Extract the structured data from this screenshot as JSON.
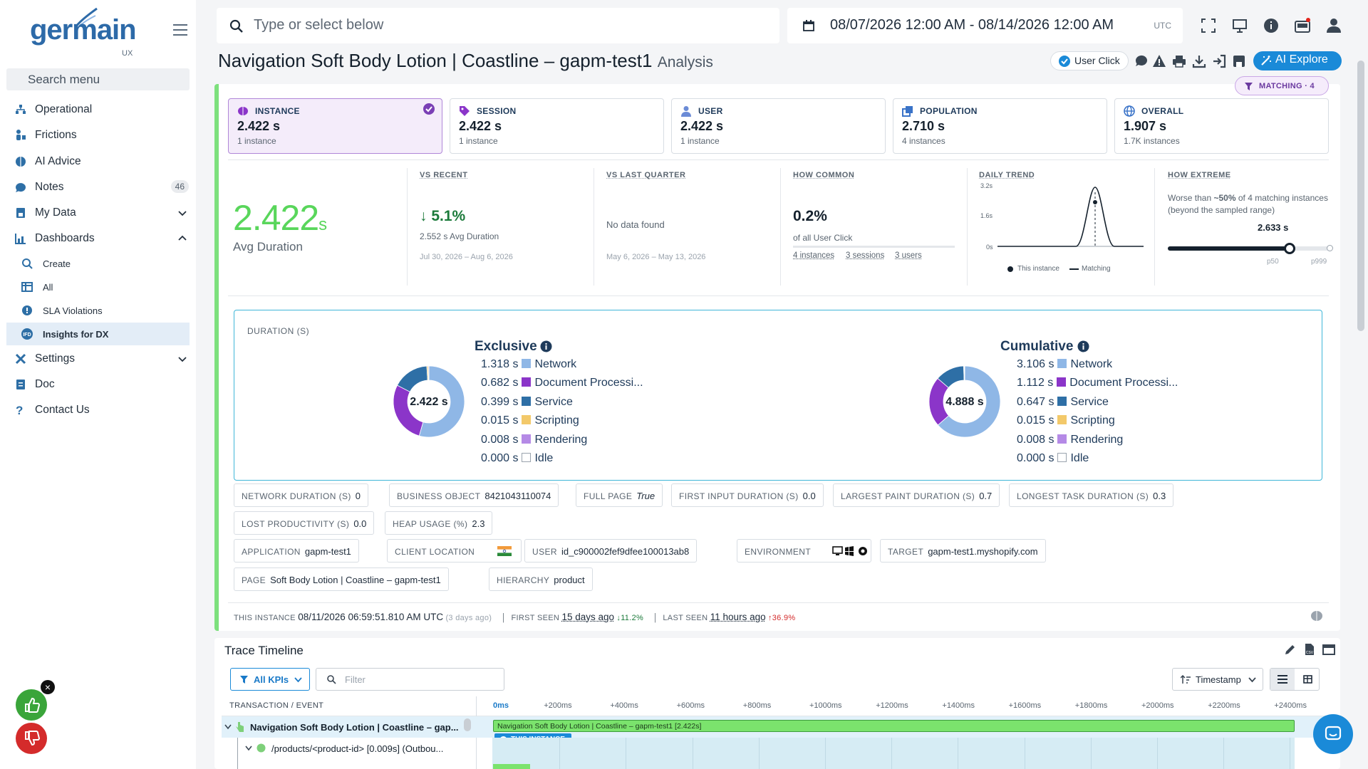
{
  "sidebar": {
    "logo_text": "germain",
    "logo_sub": "UX",
    "search_placeholder": "Search menu",
    "items": [
      {
        "label": "Operational",
        "icon": "hierarchy-icon"
      },
      {
        "label": "Frictions",
        "icon": "frictions-icon"
      },
      {
        "label": "AI Advice",
        "icon": "brain-icon"
      },
      {
        "label": "Notes",
        "icon": "notes-icon",
        "badge": "46"
      },
      {
        "label": "My Data",
        "icon": "data-icon"
      },
      {
        "label": "Dashboards",
        "icon": "dashboard-icon"
      },
      {
        "label": "Settings",
        "icon": "settings-icon"
      },
      {
        "label": "Doc",
        "icon": "doc-icon"
      },
      {
        "label": "Contact Us",
        "icon": "question-icon"
      }
    ],
    "dash_sub": [
      {
        "label": "Create",
        "icon": "search-icon"
      },
      {
        "label": "All",
        "icon": "columns-icon"
      },
      {
        "label": "SLA Violations",
        "icon": "alert-icon"
      },
      {
        "label": "Insights for DX",
        "icon": "dx-icon"
      }
    ]
  },
  "topbar": {
    "search_placeholder": "Type or select below",
    "date_range": "08/07/2026 12:00 AM - 08/14/2026 12:00 AM",
    "timezone": "UTC"
  },
  "page": {
    "title": "Navigation Soft Body Lotion | Coastline – gapm-test1",
    "subtitle": "Analysis",
    "user_click": "User Click",
    "ai_explore": "AI Explore",
    "matching": "MATCHING · 4"
  },
  "tiles": [
    {
      "label": "INSTANCE",
      "value": "2.422 s",
      "sub": "1 instance",
      "selected": true
    },
    {
      "label": "SESSION",
      "value": "2.422 s",
      "sub": "1 instance"
    },
    {
      "label": "USER",
      "value": "2.422 s",
      "sub": "1 instance"
    },
    {
      "label": "POPULATION",
      "value": "2.710 s",
      "sub": "4 instances"
    },
    {
      "label": "OVERALL",
      "value": "1.907 s",
      "sub": "1.7K instances"
    }
  ],
  "summary": {
    "avg_value": "2.422",
    "avg_unit": "s",
    "avg_label": "Avg Duration",
    "vs_recent": {
      "label": "VS RECENT",
      "value": "↓ 5.1%",
      "sub": "2.552 s Avg Duration",
      "range": "Jul 30, 2026 – Aug 6, 2026"
    },
    "vs_quarter": {
      "label": "VS LAST QUARTER",
      "value": "No data found",
      "range": "May 6, 2026 – May 13, 2026"
    },
    "how_common": {
      "label": "HOW COMMON",
      "value": "0.2%",
      "sub": "of all User Click",
      "instances": "4 instances",
      "sessions": "3 sessions",
      "users": "3 users"
    },
    "daily_trend": {
      "label": "DAILY TREND",
      "y_ticks": [
        "3.2s",
        "1.6s",
        "0s"
      ],
      "legend_instance": "This instance",
      "legend_matching": "Matching"
    },
    "how_extreme": {
      "label": "HOW EXTREME",
      "text1": "Worse than",
      "pct": "~50%",
      "text2": "of 4 matching instances (beyond the sampled range)",
      "value": "2.633 s",
      "level": 0.75,
      "p50": "p50",
      "p999": "p999"
    }
  },
  "duration": {
    "header": "DURATION (S)",
    "exclusive": {
      "title": "Exclusive",
      "center": "2.422 s",
      "items": [
        {
          "value": "1.318 s",
          "label": "Network",
          "color": "#8fb7e6"
        },
        {
          "value": "0.682 s",
          "label": "Document Processi...",
          "color": "#8b35c9"
        },
        {
          "value": "0.399 s",
          "label": "Service",
          "color": "#2e6fa6"
        },
        {
          "value": "0.015 s",
          "label": "Scripting",
          "color": "#f3c96a"
        },
        {
          "value": "0.008 s",
          "label": "Rendering",
          "color": "#b58ae6"
        },
        {
          "value": "0.000 s",
          "label": "Idle",
          "color": "#ffffff"
        }
      ]
    },
    "cumulative": {
      "title": "Cumulative",
      "center": "4.888 s",
      "items": [
        {
          "value": "3.106 s",
          "label": "Network",
          "color": "#8fb7e6"
        },
        {
          "value": "1.112 s",
          "label": "Document Processi...",
          "color": "#8b35c9"
        },
        {
          "value": "0.647 s",
          "label": "Service",
          "color": "#2e6fa6"
        },
        {
          "value": "0.015 s",
          "label": "Scripting",
          "color": "#f3c96a"
        },
        {
          "value": "0.008 s",
          "label": "Rendering",
          "color": "#b58ae6"
        },
        {
          "value": "0.000 s",
          "label": "Idle",
          "color": "#ffffff"
        }
      ]
    }
  },
  "chips": [
    {
      "k": "NETWORK DURATION (S)",
      "v": "0"
    },
    {
      "k": "BUSINESS OBJECT",
      "v": "8421043110074"
    },
    {
      "k": "FULL PAGE",
      "v": "True"
    },
    {
      "k": "FIRST INPUT DURATION (S)",
      "v": "0.0"
    },
    {
      "k": "LARGEST PAINT DURATION (S)",
      "v": "0.7"
    },
    {
      "k": "LONGEST TASK DURATION (S)",
      "v": "0.3"
    },
    {
      "k": "LOST PRODUCTIVITY (S)",
      "v": "0.0"
    },
    {
      "k": "HEAP USAGE (%)",
      "v": "2.3"
    },
    {
      "k": "APPLICATION",
      "v": "gapm-test1"
    },
    {
      "k": "CLIENT LOCATION",
      "v": ""
    },
    {
      "k": "USER",
      "v": "id_c900002fef9dfee100013ab8"
    },
    {
      "k": "ENVIRONMENT",
      "v": ""
    },
    {
      "k": "TARGET",
      "v": "gapm-test1.myshopify.com"
    },
    {
      "k": "PAGE",
      "v": "Soft Body Lotion | Coastline – gapm-test1"
    },
    {
      "k": "HIERARCHY",
      "v": "product"
    }
  ],
  "footer": {
    "this_label": "THIS INSTANCE",
    "this_value": "08/11/2026 06:59:51.810 AM UTC",
    "this_ago": "(3 days ago)",
    "first_label": "FIRST SEEN",
    "first_value": "15 days ago",
    "first_delta": "↓11.2%",
    "last_label": "LAST SEEN",
    "last_value": "11 hours ago",
    "last_delta": "↑36.9%"
  },
  "trace": {
    "title": "Trace Timeline",
    "kpis": "All KPIs",
    "filter_placeholder": "Filter",
    "sort": "Timestamp",
    "col_header": "TRANSACTION / EVENT",
    "ticks": [
      "0ms",
      "+200ms",
      "+400ms",
      "+600ms",
      "+800ms",
      "+1000ms",
      "+1200ms",
      "+1400ms",
      "+1600ms",
      "+1800ms",
      "+2000ms",
      "+2200ms",
      "+2400ms"
    ],
    "row1": "Navigation Soft Body Lotion | Coastline – gap...",
    "row2": "/products/<product-id> [0.009s] (Outbou...",
    "bar_label": "Navigation Soft Body Lotion | Coastline – gapm-test1 [2.422s]",
    "tag": "THIS INSTANCE"
  }
}
